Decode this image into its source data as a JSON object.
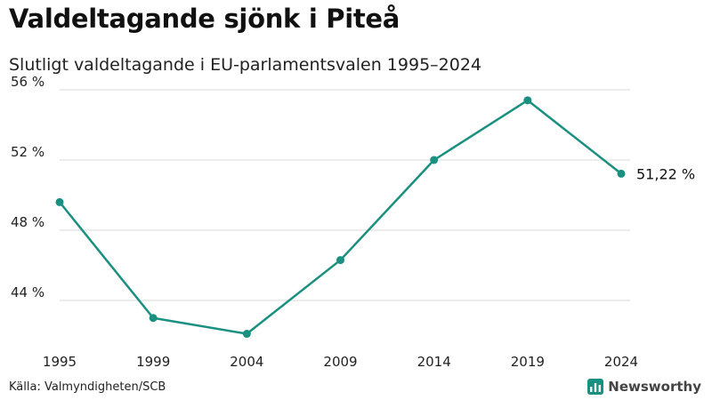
{
  "header": {
    "title": "Valdeltagande sjönk i Piteå",
    "subtitle": "Slutligt valdeltagande i EU-parlamentsvalen 1995–2024"
  },
  "footer": {
    "source": "Källa: Valmyndigheten/SCB",
    "brand": "Newsworthy"
  },
  "colors": {
    "line": "#1a9080",
    "grid": "#d9d9d9",
    "brand": "#1a9080"
  },
  "chart_data": {
    "type": "line",
    "title": "Valdeltagande sjönk i Piteå",
    "subtitle": "Slutligt valdeltagande i EU-parlamentsvalen 1995–2024",
    "xlabel": "",
    "ylabel": "",
    "categories": [
      "1995",
      "1999",
      "2004",
      "2009",
      "2014",
      "2019",
      "2024"
    ],
    "series": [
      {
        "name": "Valdeltagande",
        "values": [
          49.6,
          43.0,
          42.1,
          46.3,
          52.0,
          55.4,
          51.22
        ]
      }
    ],
    "ylim": [
      42,
      56
    ],
    "yticks": [
      44,
      48,
      52,
      56
    ],
    "ytick_labels": [
      "44 %",
      "48 %",
      "52 %",
      "56 %"
    ],
    "grid": true,
    "annotation": {
      "label": "51,22 %"
    }
  }
}
